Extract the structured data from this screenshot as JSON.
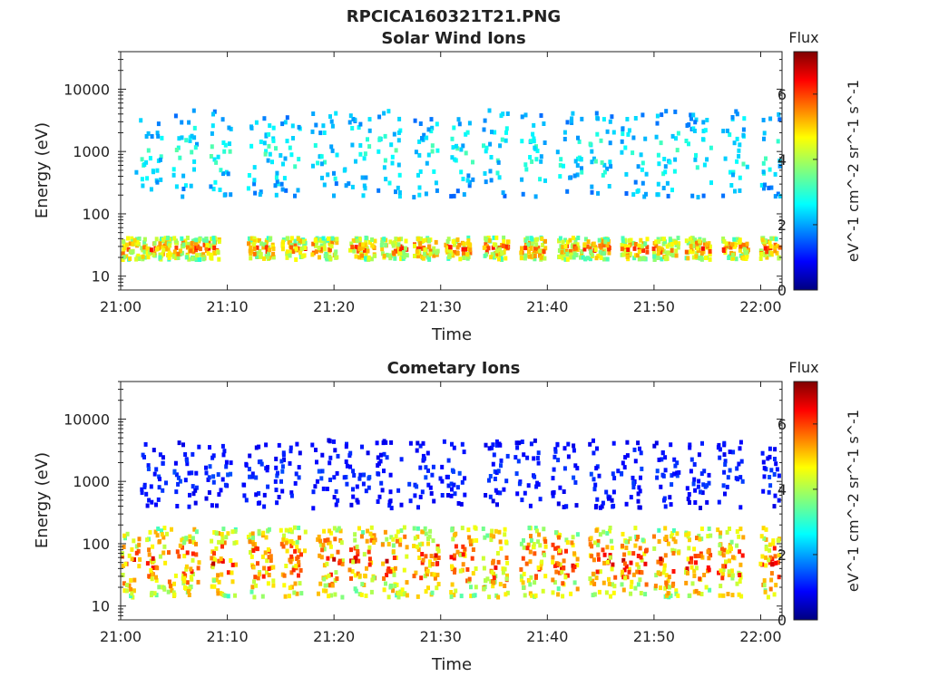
{
  "figure": {
    "title": "RPCICA160321T21.PNG"
  },
  "colorbar": {
    "label": "Flux",
    "unit_text": "eV^-1 cm^-2 sr^-1 s^-1",
    "ticks": [
      "0",
      "2",
      "4",
      "6"
    ],
    "range": [
      0,
      7.3
    ],
    "colormap": "jet"
  },
  "chart_data": [
    {
      "type": "heatmap",
      "title": "Solar Wind Ions",
      "xlabel": "Time",
      "ylabel": "Energy (eV)",
      "yscale": "log",
      "ylim": [
        6,
        40000
      ],
      "xlim": [
        "21:00",
        "22:02"
      ],
      "xticks": [
        "21:00",
        "21:10",
        "21:20",
        "21:30",
        "21:40",
        "21:50",
        "22:00"
      ],
      "yticks": [
        "10",
        "100",
        "1000",
        "10000"
      ],
      "x_minutes": [
        1,
        2.5,
        3,
        6,
        9,
        9.5,
        13,
        15.5,
        19,
        19.5,
        22,
        25,
        28.5,
        32,
        35,
        38.5,
        42,
        45,
        47.5,
        51,
        54,
        57,
        57.5,
        60,
        61.5
      ],
      "populations": [
        {
          "name": "high-energy bursts",
          "energy_eV": [
            200,
            5000
          ],
          "flux_peak": 3.5,
          "times_min": [
            2.5,
            6,
            9,
            13,
            15.5,
            19,
            22,
            25,
            28.5,
            32,
            35,
            38.5,
            42,
            45,
            48,
            51,
            54,
            57.5,
            61
          ]
        },
        {
          "name": "low-energy band",
          "energy_eV": [
            20,
            45
          ],
          "flux_peak": 6.5,
          "times_min": [
            1,
            3.5,
            6,
            8,
            13,
            16,
            19,
            22.5,
            25.5,
            28.5,
            31.5,
            35,
            38.5,
            42,
            44.5,
            48,
            51,
            54,
            57.5,
            61
          ]
        }
      ]
    },
    {
      "type": "heatmap",
      "title": "Cometary Ions",
      "xlabel": "Time",
      "ylabel": "Energy (eV)",
      "yscale": "log",
      "ylim": [
        6,
        40000
      ],
      "xlim": [
        "21:00",
        "22:02"
      ],
      "xticks": [
        "21:00",
        "21:10",
        "21:20",
        "21:30",
        "21:40",
        "21:50",
        "22:00"
      ],
      "yticks": [
        "10",
        "100",
        "1000",
        "10000"
      ],
      "populations": [
        {
          "name": "high-energy sparse",
          "energy_eV": [
            400,
            5000
          ],
          "flux_peak": 1.5,
          "times_min": [
            3,
            6,
            9,
            12.5,
            15.5,
            19,
            22,
            25,
            28,
            31,
            35,
            38,
            41.5,
            45,
            47.5,
            51,
            54,
            57,
            61
          ]
        },
        {
          "name": "low-energy band",
          "energy_eV": [
            15,
            200
          ],
          "flux_peak": 7.0,
          "times_min": [
            0.5,
            3.5,
            6,
            9.5,
            13,
            16,
            19.5,
            22.5,
            25.5,
            28.5,
            32,
            35,
            38.5,
            41.5,
            45,
            48,
            51,
            54,
            57,
            61
          ]
        }
      ]
    }
  ]
}
